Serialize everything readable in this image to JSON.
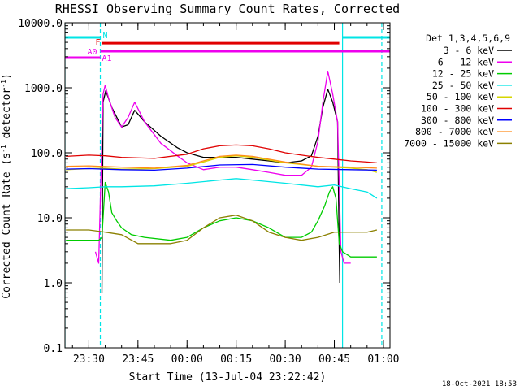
{
  "chart_data": {
    "type": "line",
    "title": "RHESSI Observing Summary Count Rates, Corrected",
    "xlabel": "Start Time (13-Jul-04 23:22:42)",
    "ylabel": "Corrected Count Rate (s⁻¹ detector⁻¹)",
    "ylabel_main": "Corrected Count Rate (s",
    "ylabel_sup1": "-1",
    "ylabel_mid": " detector",
    "ylabel_sup2": "-1",
    "ylabel_end": ")",
    "yscale": "log",
    "xlim": [
      "23:22:42",
      "01:02:00"
    ],
    "ylim": [
      0.1,
      10000
    ],
    "x_ticks": [
      "23:30",
      "23:45",
      "00:00",
      "00:15",
      "00:30",
      "00:45",
      "01:00"
    ],
    "y_ticks": [
      "0.1",
      "1.0",
      "10.0",
      "100.0",
      "1000.0",
      "10000.0"
    ],
    "timestamp": "18-Oct-2021 18:53",
    "legend": {
      "title": "Det 1,3,4,5,6,9",
      "entries": [
        "3 - 6 keV",
        "6 - 12 keV",
        "12 - 25 keV",
        "25 - 50 keV",
        "50 - 100 keV",
        "100 - 300 keV",
        "300 - 800 keV",
        "800 - 7000 keV",
        "7000 - 15000 keV"
      ]
    },
    "series": [
      {
        "name": "3 - 6 keV",
        "color": "#000000",
        "x": [
          "23:34:00",
          "23:34:20",
          "23:35:10",
          "23:37:00",
          "23:40:00",
          "23:42:00",
          "23:44:00",
          "23:47:00",
          "23:52:00",
          "23:57:00",
          "00:00:00",
          "00:05:00",
          "00:10:00",
          "00:15:00",
          "00:20:00",
          "00:25:00",
          "00:30:00",
          "00:35:00",
          "00:38:00",
          "00:40:00",
          "00:41:30",
          "00:43:00",
          "00:44:30",
          "00:46:00",
          "00:46:30",
          "00:46:40"
        ],
        "y": [
          0.7,
          600,
          900,
          500,
          250,
          270,
          450,
          300,
          180,
          120,
          100,
          85,
          85,
          85,
          80,
          75,
          70,
          75,
          90,
          180,
          500,
          950,
          600,
          300,
          3,
          1
        ]
      },
      {
        "name": "6 - 12 keV",
        "color": "#ee00ee",
        "x": [
          "23:32:00",
          "23:33:00",
          "23:34:20",
          "23:35:00",
          "23:36:00",
          "23:38:00",
          "23:40:00",
          "23:42:00",
          "23:44:00",
          "23:47:00",
          "23:52:00",
          "23:57:00",
          "00:00:00",
          "00:05:00",
          "00:10:00",
          "00:15:00",
          "00:20:00",
          "00:25:00",
          "00:30:00",
          "00:35:00",
          "00:38:00",
          "00:40:00",
          "00:41:30",
          "00:43:00",
          "00:44:30",
          "00:46:00",
          "00:46:30",
          "00:47:00",
          "00:48:00",
          "00:50:00"
        ],
        "y": [
          3,
          2,
          800,
          1100,
          700,
          350,
          250,
          350,
          600,
          300,
          140,
          90,
          70,
          55,
          60,
          60,
          55,
          50,
          45,
          45,
          60,
          150,
          600,
          1800,
          800,
          300,
          30,
          3,
          2,
          2
        ]
      },
      {
        "name": "12 - 25 keV",
        "color": "#00cc00",
        "x": [
          "23:23:00",
          "23:30:00",
          "23:33:00",
          "23:34:00",
          "23:35:00",
          "23:36:00",
          "23:37:00",
          "23:38:30",
          "23:40:00",
          "23:43:00",
          "23:47:00",
          "23:55:00",
          "00:00:00",
          "00:05:00",
          "00:10:00",
          "00:15:00",
          "00:20:00",
          "00:25:00",
          "00:30:00",
          "00:35:00",
          "00:38:00",
          "00:40:00",
          "00:42:00",
          "00:43:30",
          "00:44:30",
          "00:45:30",
          "00:46:30",
          "00:47:30",
          "00:50:00",
          "00:53:00",
          "00:58:00"
        ],
        "y": [
          4.5,
          4.5,
          4.5,
          5,
          35,
          25,
          12,
          9,
          7,
          5.5,
          5,
          4.5,
          5,
          7,
          9,
          10,
          9,
          7,
          5,
          5,
          6,
          9,
          15,
          25,
          30,
          20,
          4,
          3,
          2.5,
          2.5,
          2.5
        ]
      },
      {
        "name": "25 - 50 keV",
        "color": "#00e5e5",
        "x": [
          "23:23:00",
          "23:30:00",
          "23:35:00",
          "23:40:00",
          "23:50:00",
          "00:00:00",
          "00:10:00",
          "00:15:00",
          "00:20:00",
          "00:30:00",
          "00:40:00",
          "00:45:00",
          "00:50:00",
          "00:55:00",
          "00:58:00"
        ],
        "y": [
          28,
          29,
          30,
          30,
          31,
          34,
          38,
          40,
          38,
          34,
          30,
          32,
          28,
          25,
          20
        ]
      },
      {
        "name": "50 - 100 keV",
        "color": "#d6d600",
        "x": [
          "23:23:00",
          "23:30:00",
          "23:35:00",
          "23:40:00",
          "23:50:00",
          "00:00:00",
          "00:05:00",
          "00:10:00",
          "00:15:00",
          "00:20:00",
          "00:30:00",
          "00:40:00",
          "00:45:00",
          "00:50:00",
          "00:55:00",
          "00:58:00"
        ],
        "y": [
          55,
          57,
          58,
          56,
          57,
          62,
          72,
          85,
          90,
          85,
          70,
          62,
          60,
          58,
          55,
          50
        ]
      },
      {
        "name": "100 - 300 keV",
        "color": "#e00000",
        "x": [
          "23:23:00",
          "23:30:00",
          "23:35:00",
          "23:40:00",
          "23:50:00",
          "00:00:00",
          "00:05:00",
          "00:10:00",
          "00:15:00",
          "00:20:00",
          "00:25:00",
          "00:30:00",
          "00:35:00",
          "00:40:00",
          "00:45:00",
          "00:50:00",
          "00:55:00",
          "00:58:00"
        ],
        "y": [
          88,
          92,
          90,
          85,
          82,
          95,
          115,
          128,
          132,
          128,
          115,
          100,
          92,
          85,
          80,
          75,
          72,
          70
        ]
      },
      {
        "name": "300 - 800 keV",
        "color": "#0000ff",
        "x": [
          "23:23:00",
          "23:30:00",
          "23:40:00",
          "23:50:00",
          "00:00:00",
          "00:10:00",
          "00:20:00",
          "00:30:00",
          "00:40:00",
          "00:50:00",
          "00:58:00"
        ],
        "y": [
          56,
          57,
          55,
          54,
          58,
          65,
          66,
          60,
          56,
          55,
          54
        ]
      },
      {
        "name": "800 - 7000 keV",
        "color": "#ff8c1a",
        "x": [
          "23:23:00",
          "23:30:00",
          "23:40:00",
          "23:50:00",
          "00:00:00",
          "00:05:00",
          "00:10:00",
          "00:15:00",
          "00:20:00",
          "00:30:00",
          "00:40:00",
          "00:50:00",
          "00:58:00"
        ],
        "y": [
          62,
          63,
          60,
          58,
          64,
          75,
          88,
          92,
          88,
          72,
          62,
          60,
          58
        ]
      },
      {
        "name": "7000 - 15000 keV",
        "color": "#8b8000",
        "x": [
          "23:23:00",
          "23:30:00",
          "23:35:00",
          "23:40:00",
          "23:45:00",
          "23:50:00",
          "23:55:00",
          "00:00:00",
          "00:05:00",
          "00:10:00",
          "00:15:00",
          "00:20:00",
          "00:25:00",
          "00:30:00",
          "00:35:00",
          "00:40:00",
          "00:45:00",
          "00:50:00",
          "00:55:00",
          "00:58:00"
        ],
        "y": [
          6.5,
          6.5,
          6,
          5.5,
          4,
          4,
          4,
          4.5,
          7,
          10,
          11,
          9,
          6,
          5,
          4.5,
          5,
          6,
          6,
          6,
          6.5
        ]
      }
    ],
    "vertical_lines": [
      {
        "time": "23:22:42",
        "color": "#00e5e5",
        "style": "solid"
      },
      {
        "time": "23:33:30",
        "color": "#00e5e5",
        "style": "dashed"
      },
      {
        "time": "00:47:30",
        "color": "#00e5e5",
        "style": "solid"
      },
      {
        "time": "00:59:30",
        "color": "#00e5e5",
        "style": "dashed"
      }
    ],
    "bars": [
      {
        "label": "N",
        "color": "#00e5e5",
        "segments": [
          [
            "23:22:42",
            "23:33:30"
          ],
          [
            "00:47:30",
            "01:02:00"
          ]
        ],
        "level": 5950
      },
      {
        "label": "F",
        "color": "#e00000",
        "segments": [
          [
            "23:34:00",
            "00:46:30"
          ]
        ],
        "level": 4850
      },
      {
        "label": "A0",
        "color": "#ee00ee",
        "segments": [
          [
            "23:22:42",
            "23:33:30"
          ]
        ],
        "level": 2900
      },
      {
        "label": "A1",
        "color": "#ee00ee",
        "segments": [
          [
            "23:33:30",
            "01:02:00"
          ]
        ],
        "level": 3650
      }
    ]
  }
}
